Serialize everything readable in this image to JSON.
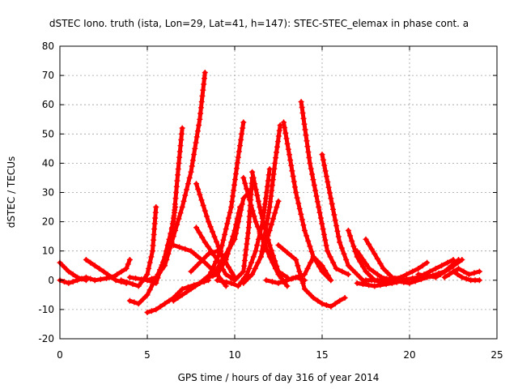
{
  "chart_data": {
    "type": "scatter",
    "title": "dSTEC Iono. truth (ista, Lon=29, Lat=41, h=147): STEC-STEC_elemax in phase cont. a",
    "xlabel": "GPS time / hours of day 316 of year 2014",
    "ylabel": "dSTEC  / TECUs",
    "xlim": [
      0,
      25
    ],
    "ylim": [
      -20,
      80
    ],
    "xticks": [
      "0",
      "5",
      "10",
      "15",
      "20",
      "25"
    ],
    "yticks": [
      "-20",
      "-10",
      "0",
      "10",
      "20",
      "30",
      "40",
      "50",
      "60",
      "70",
      "80"
    ],
    "grid": true,
    "marker": "plus",
    "color": "#ff0000",
    "series": [
      {
        "points": [
          [
            0.0,
            6
          ],
          [
            0.5,
            3
          ],
          [
            1.0,
            1
          ],
          [
            1.5,
            0
          ]
        ]
      },
      {
        "points": [
          [
            0.0,
            0
          ],
          [
            0.5,
            -1
          ],
          [
            1.0,
            0
          ],
          [
            1.5,
            1
          ],
          [
            2.0,
            0
          ]
        ]
      },
      {
        "points": [
          [
            1.5,
            7
          ],
          [
            2.5,
            3
          ],
          [
            3.2,
            0
          ],
          [
            3.8,
            -1
          ]
        ]
      },
      {
        "points": [
          [
            2.0,
            0
          ],
          [
            3.0,
            1
          ],
          [
            3.8,
            4
          ],
          [
            4.0,
            7
          ]
        ]
      },
      {
        "points": [
          [
            3.5,
            0
          ],
          [
            4.5,
            -2
          ],
          [
            5.0,
            2
          ],
          [
            5.3,
            10
          ],
          [
            5.5,
            25
          ]
        ]
      },
      {
        "points": [
          [
            4.0,
            -7
          ],
          [
            4.5,
            -8
          ],
          [
            5.0,
            -5
          ],
          [
            5.6,
            2
          ],
          [
            6.2,
            10
          ],
          [
            6.6,
            25
          ]
        ]
      },
      {
        "points": [
          [
            4.0,
            1
          ],
          [
            5.0,
            0
          ],
          [
            5.5,
            -1
          ],
          [
            6.0,
            8
          ],
          [
            6.5,
            20
          ],
          [
            6.8,
            40
          ],
          [
            7.0,
            52
          ]
        ]
      },
      {
        "points": [
          [
            5.0,
            -11
          ],
          [
            5.5,
            -10
          ],
          [
            6.0,
            -8
          ],
          [
            6.5,
            -6
          ],
          [
            7.0,
            -3
          ],
          [
            8.0,
            -1
          ],
          [
            8.5,
            0
          ]
        ]
      },
      {
        "points": [
          [
            5.0,
            0
          ],
          [
            5.5,
            1
          ],
          [
            6.0,
            5
          ],
          [
            6.5,
            15
          ],
          [
            7.0,
            25
          ],
          [
            7.5,
            37
          ],
          [
            8.0,
            55
          ],
          [
            8.3,
            71
          ]
        ]
      },
      {
        "points": [
          [
            6.5,
            -7
          ],
          [
            7.0,
            -5
          ],
          [
            8.0,
            -1
          ],
          [
            9.0,
            4
          ],
          [
            10.0,
            14
          ],
          [
            10.5,
            28
          ],
          [
            10.8,
            30
          ]
        ]
      },
      {
        "points": [
          [
            6.5,
            12
          ],
          [
            7.5,
            10
          ],
          [
            8.3,
            6
          ],
          [
            9.0,
            2
          ],
          [
            9.5,
            -2
          ]
        ]
      },
      {
        "points": [
          [
            7.5,
            3
          ],
          [
            8.0,
            6
          ],
          [
            8.5,
            9
          ],
          [
            9.0,
            10
          ]
        ]
      },
      {
        "points": [
          [
            7.8,
            33
          ],
          [
            8.5,
            20
          ],
          [
            9.3,
            8
          ],
          [
            10.0,
            1
          ]
        ]
      },
      {
        "points": [
          [
            8.0,
            -1
          ],
          [
            8.5,
            1
          ],
          [
            9.0,
            2
          ],
          [
            9.5,
            7
          ],
          [
            10.0,
            17
          ],
          [
            10.3,
            25
          ]
        ]
      },
      {
        "points": [
          [
            7.8,
            18
          ],
          [
            8.3,
            13
          ],
          [
            9.0,
            7
          ],
          [
            9.5,
            2
          ],
          [
            10.0,
            0
          ]
        ]
      },
      {
        "points": [
          [
            8.5,
            1
          ],
          [
            9.2,
            10
          ],
          [
            9.8,
            25
          ],
          [
            10.2,
            42
          ],
          [
            10.5,
            54
          ]
        ]
      },
      {
        "points": [
          [
            10.0,
            0
          ],
          [
            10.5,
            3
          ],
          [
            10.8,
            18
          ],
          [
            11.0,
            35
          ]
        ]
      },
      {
        "points": [
          [
            9.0,
            0
          ],
          [
            9.8,
            -1
          ],
          [
            10.2,
            -2
          ],
          [
            10.7,
            2
          ],
          [
            11.2,
            10
          ],
          [
            11.6,
            20
          ],
          [
            12.0,
            38
          ]
        ]
      },
      {
        "points": [
          [
            11.0,
            37
          ],
          [
            11.5,
            23
          ],
          [
            12.0,
            12
          ],
          [
            12.5,
            3
          ],
          [
            13.0,
            1
          ]
        ]
      },
      {
        "points": [
          [
            10.5,
            35
          ],
          [
            11.2,
            20
          ],
          [
            12.0,
            8
          ],
          [
            12.5,
            2
          ],
          [
            13.0,
            -2
          ]
        ]
      },
      {
        "points": [
          [
            10.5,
            -1
          ],
          [
            11.0,
            2
          ],
          [
            11.5,
            8
          ],
          [
            12.0,
            17
          ],
          [
            12.5,
            27
          ]
        ]
      },
      {
        "points": [
          [
            11.8,
            0
          ],
          [
            12.5,
            -1
          ],
          [
            13.0,
            0
          ],
          [
            13.5,
            1
          ],
          [
            14.0,
            0
          ]
        ]
      },
      {
        "points": [
          [
            11.5,
            8
          ],
          [
            12.0,
            25
          ],
          [
            12.3,
            40
          ],
          [
            12.6,
            53
          ]
        ]
      },
      {
        "points": [
          [
            12.8,
            54
          ],
          [
            13.5,
            30
          ],
          [
            14.0,
            17
          ],
          [
            14.5,
            8
          ],
          [
            15.0,
            3
          ],
          [
            15.5,
            0
          ]
        ]
      },
      {
        "points": [
          [
            13.8,
            61
          ],
          [
            14.3,
            40
          ],
          [
            14.8,
            25
          ],
          [
            15.3,
            10
          ],
          [
            15.8,
            4
          ],
          [
            16.5,
            2
          ]
        ]
      },
      {
        "points": [
          [
            13.0,
            0
          ],
          [
            14.0,
            2
          ],
          [
            14.5,
            8
          ],
          [
            15.0,
            5
          ],
          [
            15.5,
            0
          ]
        ]
      },
      {
        "points": [
          [
            12.5,
            12
          ],
          [
            13.5,
            7
          ],
          [
            14.0,
            -3
          ],
          [
            14.5,
            -6
          ],
          [
            15.0,
            -8
          ],
          [
            15.5,
            -9
          ],
          [
            16.0,
            -7
          ],
          [
            16.3,
            -6
          ]
        ]
      },
      {
        "points": [
          [
            15.0,
            43
          ],
          [
            15.5,
            28
          ],
          [
            16.0,
            13
          ],
          [
            16.5,
            5
          ],
          [
            17.0,
            2
          ],
          [
            17.5,
            -1
          ]
        ]
      },
      {
        "points": [
          [
            16.5,
            17
          ],
          [
            17.0,
            8
          ],
          [
            17.5,
            3
          ],
          [
            18.0,
            0
          ],
          [
            18.5,
            -1
          ]
        ]
      },
      {
        "points": [
          [
            17.0,
            10
          ],
          [
            17.7,
            4
          ],
          [
            18.4,
            1
          ],
          [
            19.0,
            0
          ]
        ]
      },
      {
        "points": [
          [
            17.5,
            14
          ],
          [
            18.0,
            9
          ],
          [
            18.5,
            4
          ],
          [
            19.0,
            1
          ],
          [
            19.5,
            0
          ]
        ]
      },
      {
        "points": [
          [
            17.0,
            -1
          ],
          [
            18.0,
            -2
          ],
          [
            19.0,
            -1
          ],
          [
            19.8,
            0
          ]
        ]
      },
      {
        "points": [
          [
            17.5,
            0
          ],
          [
            18.5,
            0
          ],
          [
            19.5,
            1
          ],
          [
            20.5,
            4
          ],
          [
            21.0,
            6
          ]
        ]
      },
      {
        "points": [
          [
            18.5,
            -1
          ],
          [
            19.5,
            0
          ],
          [
            20.5,
            1
          ],
          [
            21.5,
            4
          ],
          [
            22.5,
            7
          ]
        ]
      },
      {
        "points": [
          [
            19.0,
            0
          ],
          [
            20.0,
            -1
          ],
          [
            21.0,
            1
          ],
          [
            22.0,
            3
          ],
          [
            22.8,
            7
          ]
        ]
      },
      {
        "points": [
          [
            20.5,
            2
          ],
          [
            21.5,
            1
          ],
          [
            22.3,
            4
          ],
          [
            23.0,
            7
          ]
        ]
      },
      {
        "points": [
          [
            22.0,
            1
          ],
          [
            22.8,
            4
          ],
          [
            23.4,
            2
          ],
          [
            24.0,
            3
          ]
        ]
      },
      {
        "points": [
          [
            22.5,
            3
          ],
          [
            23.0,
            1
          ],
          [
            23.5,
            0
          ],
          [
            24.0,
            0
          ]
        ]
      }
    ]
  }
}
